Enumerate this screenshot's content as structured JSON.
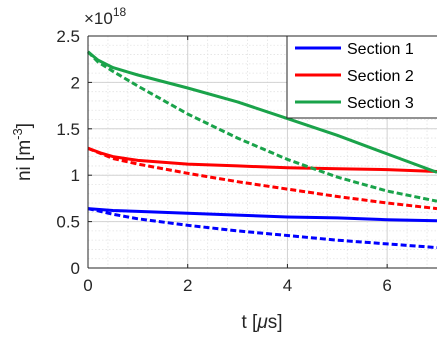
{
  "chart_data": {
    "type": "line",
    "xlabel_parts": [
      "t [",
      "μ",
      "s]"
    ],
    "ylabel_parts": [
      "ni [m",
      "-3",
      "]"
    ],
    "y_multiplier": {
      "base": "×10",
      "exponent": "18"
    },
    "xlim": [
      0,
      7
    ],
    "ylim": [
      0,
      2.5
    ],
    "x_ticks": [
      0,
      2,
      4,
      6
    ],
    "x_tick_labels": [
      "0",
      "2",
      "4",
      "6"
    ],
    "y_ticks": [
      0,
      0.5,
      1,
      1.5,
      2,
      2.5
    ],
    "y_tick_labels": [
      "0",
      "0.5",
      "1",
      "1.5",
      "2",
      "2.5"
    ],
    "grid": true,
    "minor_grid": true,
    "legend_position": "top-right",
    "series": [
      {
        "name": "Section 1",
        "color": "#0000ff",
        "style": "solid",
        "x": [
          0,
          0.5,
          1,
          2,
          3,
          4,
          5,
          6,
          7
        ],
        "y": [
          0.64,
          0.62,
          0.61,
          0.59,
          0.57,
          0.55,
          0.54,
          0.52,
          0.51
        ]
      },
      {
        "name": "",
        "color": "#0000ff",
        "style": "dashed",
        "x": [
          0,
          0.5,
          1,
          2,
          3,
          4,
          5,
          6,
          7
        ],
        "y": [
          0.64,
          0.58,
          0.53,
          0.46,
          0.4,
          0.35,
          0.3,
          0.26,
          0.22
        ]
      },
      {
        "name": "Section 2",
        "color": "#ff0000",
        "style": "solid",
        "x": [
          0,
          0.25,
          0.5,
          1,
          2,
          3,
          4,
          5,
          6,
          7
        ],
        "y": [
          1.29,
          1.24,
          1.2,
          1.16,
          1.12,
          1.1,
          1.08,
          1.07,
          1.06,
          1.04
        ]
      },
      {
        "name": "",
        "color": "#ff0000",
        "style": "dashed",
        "x": [
          0,
          0.5,
          1,
          2,
          3,
          4,
          5,
          6,
          7
        ],
        "y": [
          1.29,
          1.18,
          1.12,
          1.02,
          0.93,
          0.85,
          0.77,
          0.7,
          0.64
        ]
      },
      {
        "name": "Section 3",
        "color": "#1aa34a",
        "style": "solid",
        "x": [
          0,
          0.2,
          0.5,
          1,
          2,
          3,
          4,
          5,
          6,
          7
        ],
        "y": [
          2.33,
          2.24,
          2.16,
          2.08,
          1.94,
          1.79,
          1.61,
          1.43,
          1.23,
          1.03
        ]
      },
      {
        "name": "",
        "color": "#1aa34a",
        "style": "dashed",
        "x": [
          0,
          0.2,
          0.5,
          1,
          2,
          3,
          4,
          5,
          6,
          7
        ],
        "y": [
          2.33,
          2.22,
          2.12,
          1.96,
          1.66,
          1.4,
          1.17,
          0.98,
          0.83,
          0.72
        ]
      }
    ]
  }
}
